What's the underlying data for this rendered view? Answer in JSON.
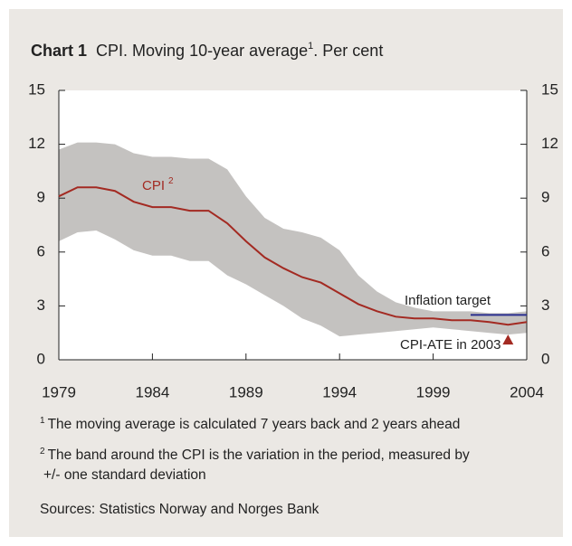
{
  "chart_data": {
    "type": "line",
    "title": {
      "label": "Chart 1",
      "text": "CPI. Moving 10-year average",
      "note_ref": "1",
      "suffix": ". Per cent"
    },
    "x": [
      1979,
      1980,
      1981,
      1982,
      1983,
      1984,
      1985,
      1986,
      1987,
      1988,
      1989,
      1990,
      1991,
      1992,
      1993,
      1994,
      1995,
      1996,
      1997,
      1998,
      1999,
      2000,
      2001,
      2002,
      2003,
      2004
    ],
    "series": [
      {
        "name": "CPI",
        "note_ref": "2",
        "color": "#a32a22",
        "values": [
          9.1,
          9.6,
          9.6,
          9.4,
          8.8,
          8.5,
          8.5,
          8.3,
          8.3,
          7.6,
          6.6,
          5.7,
          5.1,
          4.6,
          4.3,
          3.7,
          3.1,
          2.7,
          2.4,
          2.3,
          2.3,
          2.2,
          2.2,
          2.1,
          1.95,
          2.1
        ]
      }
    ],
    "band": {
      "color": "#c4c2c0",
      "upper": [
        11.7,
        12.1,
        12.1,
        12.0,
        11.5,
        11.3,
        11.3,
        11.2,
        11.2,
        10.6,
        9.1,
        7.9,
        7.3,
        7.1,
        6.8,
        6.1,
        4.7,
        3.8,
        3.2,
        2.9,
        2.7,
        2.7,
        2.7,
        2.6,
        2.6,
        2.7
      ],
      "lower": [
        6.6,
        7.1,
        7.2,
        6.7,
        6.1,
        5.8,
        5.8,
        5.5,
        5.5,
        4.7,
        4.2,
        3.6,
        3.0,
        2.3,
        1.9,
        1.3,
        1.4,
        1.5,
        1.6,
        1.7,
        1.8,
        1.7,
        1.6,
        1.5,
        1.4,
        1.5
      ]
    },
    "inflation_target": {
      "label": "Inflation target",
      "value": 2.5,
      "x": [
        2001,
        2004
      ],
      "color": "#2a2f8f"
    },
    "cpi_ate": {
      "label": "CPI-ATE in 2003",
      "x": 2003,
      "value": 1.1,
      "color": "#a32a22"
    },
    "xlim": [
      1979,
      2004
    ],
    "xticks": [
      1979,
      1984,
      1989,
      1994,
      1999,
      2004
    ],
    "ylim": [
      0,
      15
    ],
    "yticks": [
      0,
      3,
      6,
      9,
      12,
      15
    ],
    "y2lim": [
      0,
      15
    ],
    "y2ticks": [
      0,
      3,
      6,
      9,
      12,
      15
    ],
    "notes": [
      {
        "ref": "1",
        "text": "The moving average is calculated 7 years back and 2 years ahead"
      },
      {
        "ref": "2",
        "text": "The band around the CPI is the variation in the period, measured by",
        "text2": "+/- one standard deviation"
      }
    ],
    "source": "Sources: Statistics Norway and Norges Bank"
  }
}
